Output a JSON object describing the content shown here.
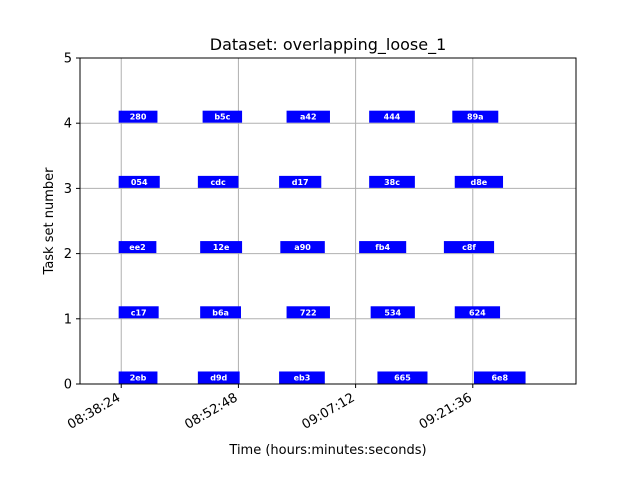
{
  "chart_data": {
    "type": "gantt",
    "title": "Dataset: overlapping_loose_1",
    "xlabel": "Time (hours:minutes:seconds)",
    "ylabel": "Task set number",
    "ylim": [
      0,
      5
    ],
    "xlim": [
      "08:33:20",
      "09:34:17"
    ],
    "x_ticks": [
      "08:38:24",
      "08:52:48",
      "09:07:12",
      "09:21:36"
    ],
    "y_ticks": [
      0,
      1,
      2,
      3,
      4,
      5
    ],
    "grid": true,
    "bar_color": "#0000ff",
    "label_color": "#ffffff",
    "tasks": [
      {
        "row": 4,
        "label": "280",
        "start": "08:38:05",
        "end": "08:42:51"
      },
      {
        "row": 4,
        "label": "b5c",
        "start": "08:48:24",
        "end": "08:53:15"
      },
      {
        "row": 4,
        "label": "a42",
        "start": "08:58:43",
        "end": "09:04:03"
      },
      {
        "row": 4,
        "label": "444",
        "start": "09:08:52",
        "end": "09:14:29"
      },
      {
        "row": 4,
        "label": "89a",
        "start": "09:19:05",
        "end": "09:24:44"
      },
      {
        "row": 3,
        "label": "054",
        "start": "08:38:05",
        "end": "08:43:08"
      },
      {
        "row": 3,
        "label": "cdc",
        "start": "08:47:49",
        "end": "08:52:48"
      },
      {
        "row": 3,
        "label": "d17",
        "start": "08:57:48",
        "end": "09:02:59"
      },
      {
        "row": 3,
        "label": "38c",
        "start": "09:08:52",
        "end": "09:14:29"
      },
      {
        "row": 3,
        "label": "d8e",
        "start": "09:19:23",
        "end": "09:25:19"
      },
      {
        "row": 2,
        "label": "ee2",
        "start": "08:38:05",
        "end": "08:42:43"
      },
      {
        "row": 2,
        "label": "12e",
        "start": "08:48:06",
        "end": "08:53:15"
      },
      {
        "row": 2,
        "label": "a90",
        "start": "08:57:57",
        "end": "09:03:25"
      },
      {
        "row": 2,
        "label": "fb4",
        "start": "09:07:38",
        "end": "09:13:25"
      },
      {
        "row": 2,
        "label": "c8f",
        "start": "09:18:03",
        "end": "09:24:13"
      },
      {
        "row": 1,
        "label": "c17",
        "start": "08:38:05",
        "end": "08:43:00"
      },
      {
        "row": 1,
        "label": "b6a",
        "start": "08:48:06",
        "end": "08:53:07"
      },
      {
        "row": 1,
        "label": "722",
        "start": "08:58:43",
        "end": "09:04:03"
      },
      {
        "row": 1,
        "label": "534",
        "start": "09:09:03",
        "end": "09:14:29"
      },
      {
        "row": 1,
        "label": "624",
        "start": "09:19:23",
        "end": "09:24:57"
      },
      {
        "row": 0,
        "label": "2eb",
        "start": "08:38:05",
        "end": "08:42:51"
      },
      {
        "row": 0,
        "label": "d9d",
        "start": "08:47:49",
        "end": "08:52:57"
      },
      {
        "row": 0,
        "label": "eb3",
        "start": "08:57:48",
        "end": "09:03:25"
      },
      {
        "row": 0,
        "label": "665",
        "start": "09:09:53",
        "end": "09:16:02"
      },
      {
        "row": 0,
        "label": "6e8",
        "start": "09:21:45",
        "end": "09:28:05"
      }
    ]
  }
}
